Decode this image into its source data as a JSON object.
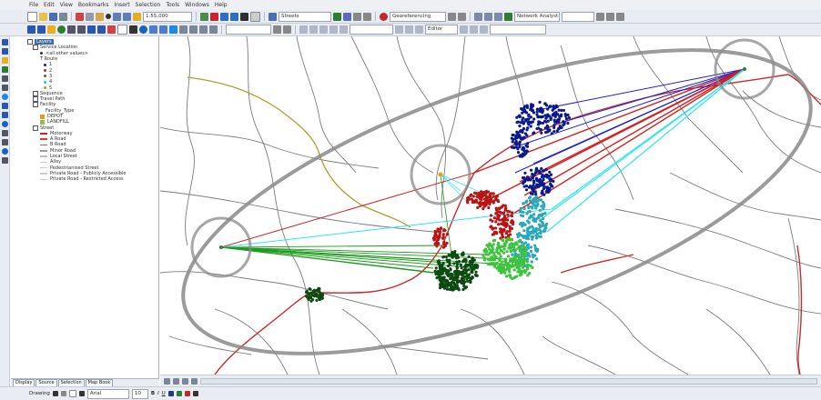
{
  "menu": [
    "File",
    "Edit",
    "View",
    "Bookmarks",
    "Insert",
    "Selection",
    "Tools",
    "Windows",
    "Help"
  ],
  "toolbar": {
    "scale": "1:55,000",
    "network_dataset": "Streets",
    "editor_label": "Editor",
    "georef_label": "Georeferencing",
    "network_analyst_label": "Network Analyst"
  },
  "toc": {
    "layers_label": "Layers",
    "route_group": "Service Location",
    "route_layer": "<all other values>",
    "route_field": "T Route",
    "route_items": [
      {
        "label": "1",
        "color": "#1a237e"
      },
      {
        "label": "2",
        "color": "#c62828"
      },
      {
        "label": "3",
        "color": "#2e7d32"
      },
      {
        "label": "4",
        "color": "#26c6da"
      },
      {
        "label": "5",
        "color": "#7cb342"
      }
    ],
    "stop_label": "Sequence",
    "travel_label": "Travel Path",
    "facility_label": "Facility",
    "facility_type_label": "Facility_Type",
    "facility_items": [
      "DEPOT",
      "LANDFILL"
    ],
    "street_label": "Street",
    "street_items": [
      {
        "label": "Motorway",
        "color": "#c62828"
      },
      {
        "label": "A Road",
        "color": "#e53935"
      },
      {
        "label": "B Road",
        "color": "#8d6e63"
      },
      {
        "label": "Minor Road",
        "color": "#9e9e9e"
      },
      {
        "label": "Local Street",
        "color": "#bdbdbd"
      },
      {
        "label": "Alley",
        "color": "#cccccc"
      },
      {
        "label": "Pedestrianised Street",
        "color": "#cccccc"
      },
      {
        "label": "Private Road - Publicly Accessible",
        "color": "#cccccc"
      },
      {
        "label": "Private Road - Restricted Access",
        "color": "#cccccc"
      }
    ],
    "tabs": [
      "Display",
      "Source",
      "Selection",
      "Map Book"
    ]
  },
  "colors": {
    "route_blue": "#1f1fd6",
    "route_red": "#d61f1f",
    "route_cyan": "#2ee6f0",
    "route_green": "#1a9a1a",
    "cluster_navy": "#0a1a8a",
    "cluster_red": "#b81414",
    "cluster_teal": "#2aa7b8",
    "cluster_lime": "#3cc43c",
    "cluster_dark": "#0d4a12",
    "motorway": "#cc2b2b",
    "olive_road": "#b0a032",
    "ellipse": "#8a8a8a"
  },
  "drawing": {
    "label": "Drawing",
    "font": "Arial",
    "font_size": "10"
  }
}
